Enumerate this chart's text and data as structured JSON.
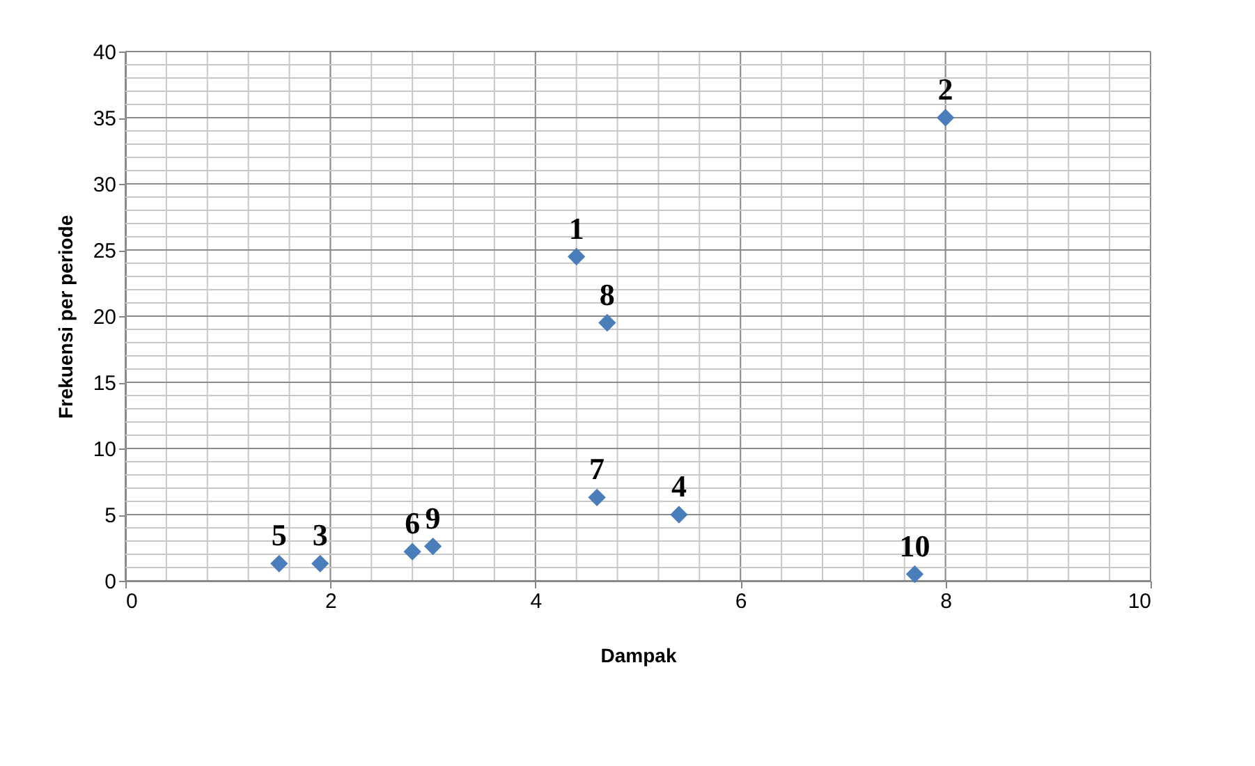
{
  "chart_data": {
    "type": "scatter",
    "xlabel": "Dampak",
    "ylabel": "Frekuensi per periode",
    "x": [
      4.4,
      8,
      1.9,
      5.4,
      1.5,
      2.8,
      4.6,
      4.7,
      3.0,
      7.7
    ],
    "series": [
      {
        "color": "#4a7ebb",
        "values": [
          24.5,
          35,
          1.3,
          5,
          1.3,
          2.2,
          6.3,
          19.5,
          2.6,
          0.5
        ]
      }
    ],
    "annotations": [
      {
        "text": "1",
        "x": 4.4,
        "y": 24.5
      },
      {
        "text": "2",
        "x": 8,
        "y": 35
      },
      {
        "text": "3",
        "x": 1.9,
        "y": 1.3
      },
      {
        "text": "4",
        "x": 5.4,
        "y": 5
      },
      {
        "text": "5",
        "x": 1.5,
        "y": 1.3
      },
      {
        "text": "6",
        "x": 2.8,
        "y": 2.2
      },
      {
        "text": "7",
        "x": 4.6,
        "y": 6.3
      },
      {
        "text": "8",
        "x": 4.7,
        "y": 19.5
      },
      {
        "text": "9",
        "x": 3.0,
        "y": 2.6
      },
      {
        "text": "10",
        "x": 7.7,
        "y": 0.5
      }
    ],
    "xlim": [
      0,
      10
    ],
    "ylim": [
      0,
      40
    ],
    "xticks": [
      0,
      2,
      4,
      6,
      8,
      10
    ],
    "yticks": [
      0,
      5,
      10,
      15,
      20,
      25,
      30,
      35,
      40
    ],
    "grid": true,
    "marker": "diamond"
  }
}
